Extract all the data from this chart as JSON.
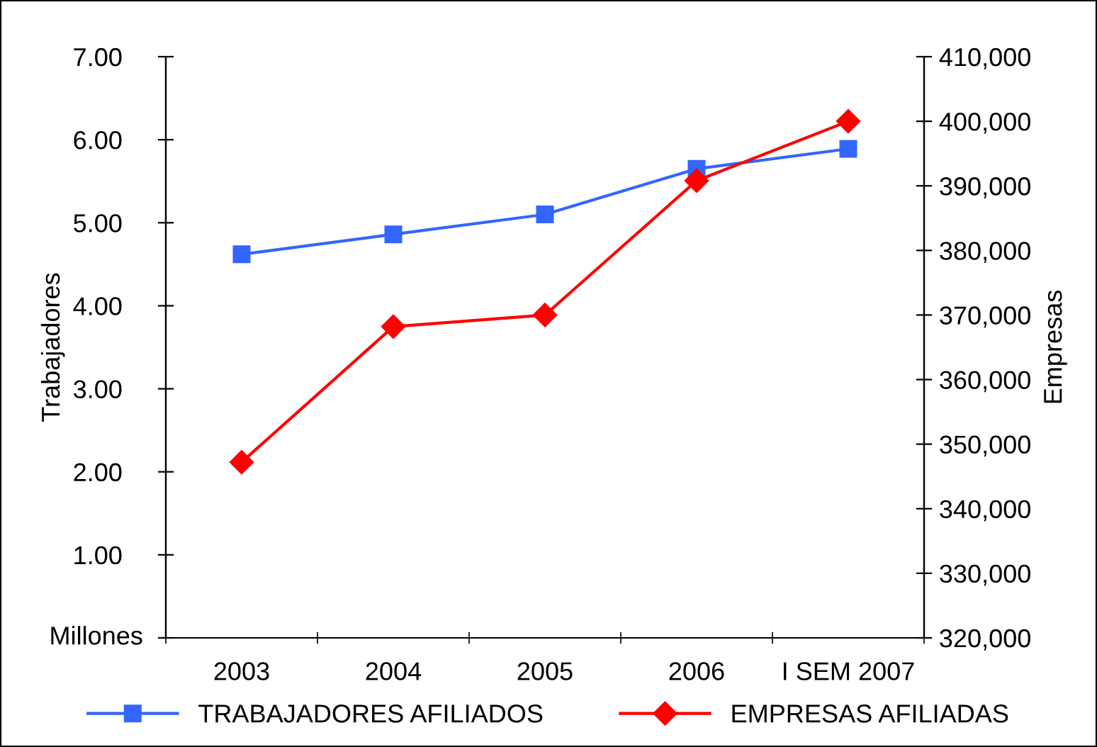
{
  "chart_data": {
    "type": "line",
    "categories": [
      "2003",
      "2004",
      "2005",
      "2006",
      "I SEM 2007"
    ],
    "series": [
      {
        "name": "TRABAJADORES AFILIADOS",
        "color": "#3366ff",
        "marker": "square",
        "values": [
          4.62,
          4.86,
          5.1,
          5.65,
          5.89
        ]
      },
      {
        "name": "EMPRESAS AFILIADAS",
        "color": "#ff0000",
        "marker": "diamond",
        "axis": "y2",
        "values": [
          347200,
          368200,
          370000,
          390800,
          400000
        ]
      }
    ],
    "ylabel": "Trabajadores",
    "y2label": "Empresas",
    "ylim": [
      0,
      7
    ],
    "yticks": [
      {
        "value": 0,
        "label": null
      },
      {
        "value": 1,
        "label": "1.00"
      },
      {
        "value": 2,
        "label": "2.00"
      },
      {
        "value": 3,
        "label": "3.00"
      },
      {
        "value": 4,
        "label": "4.00"
      },
      {
        "value": 5,
        "label": "5.00"
      },
      {
        "value": 6,
        "label": "6.00"
      },
      {
        "value": 7,
        "label": "7.00"
      }
    ],
    "y2lim": [
      320000,
      410000
    ],
    "y2ticks": [
      {
        "value": 320000,
        "label": "320,000"
      },
      {
        "value": 330000,
        "label": "330,000"
      },
      {
        "value": 340000,
        "label": "340,000"
      },
      {
        "value": 350000,
        "label": "350,000"
      },
      {
        "value": 360000,
        "label": "360,000"
      },
      {
        "value": 370000,
        "label": "370,000"
      },
      {
        "value": 380000,
        "label": "380,000"
      },
      {
        "value": 390000,
        "label": "390,000"
      },
      {
        "value": 400000,
        "label": "400,000"
      },
      {
        "value": 410000,
        "label": "410,000"
      }
    ],
    "annotations": [
      "Millones"
    ],
    "legend": "bottom",
    "grid": false
  }
}
